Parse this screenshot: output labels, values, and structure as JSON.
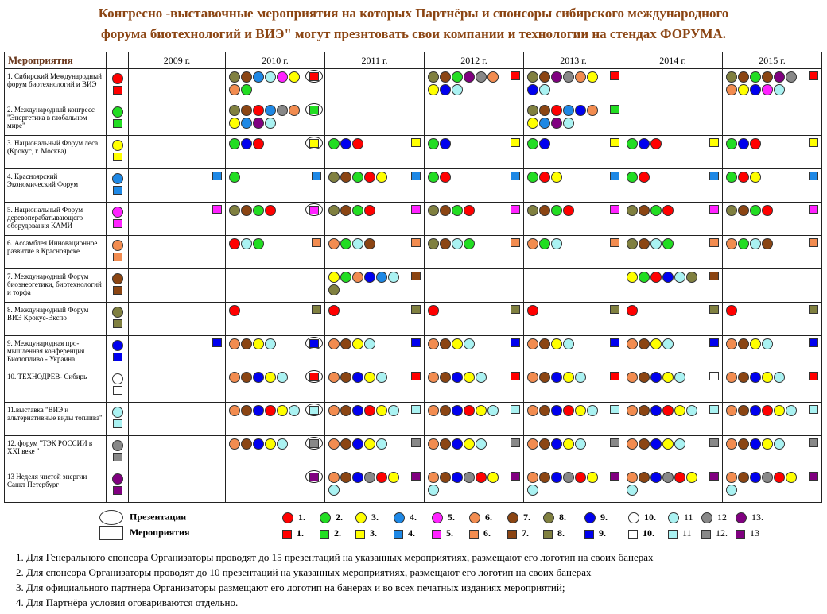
{
  "title_line1": "Конгресно -выставочные мероприятия на которых Партнёры и спонсоры сибирского международного",
  "title_line2": "форума биотехнологий и ВИЭ\" могут презнтовать свои компании и технологии на стендах  ФОРУМА.",
  "header": {
    "events_label": "Мероприятия",
    "years": [
      "2009 г.",
      "2010 г.",
      "2011 г.",
      "2012 г.",
      "2013 г.",
      "2014 г.",
      "2015 г."
    ]
  },
  "colors": {
    "1": "#ff0000",
    "2": "#22dd22",
    "3": "#ffff00",
    "4": "#1e88e5",
    "5": "#ff22ff",
    "6": "#f28c50",
    "7": "#8b4513",
    "8": "#808040",
    "9": "#0000ee",
    "10": "#ffffff",
    "11": "#aaf2f2",
    "12": "#888888",
    "13": "#800080"
  },
  "events": [
    {
      "name": "1. Сибирский Международный форум биотехнологий и ВИЭ",
      "key": "1",
      "cells": [
        null,
        {
          "dots": [
            "8",
            "7",
            "4",
            "11",
            "5",
            "3",
            "6",
            "2"
          ],
          "sq": "1",
          "ring": true
        },
        null,
        {
          "dots": [
            "8",
            "7",
            "2",
            "13",
            "12",
            "6",
            "3",
            "9",
            "11"
          ],
          "sq": "1"
        },
        {
          "dots": [
            "8",
            "7",
            "13",
            "12",
            "6",
            "3",
            "9",
            "11"
          ],
          "sq": "1"
        },
        null,
        {
          "dots": [
            "8",
            "7",
            "2",
            "7",
            "13",
            "12",
            "6",
            "3",
            "9",
            "5",
            "11"
          ],
          "sq": "1"
        }
      ]
    },
    {
      "name": "2. Международный конгресс \"Энергетика в глобальном мире\"",
      "key": "2",
      "cells": [
        null,
        {
          "dots": [
            "8",
            "7",
            "1",
            "4",
            "12",
            "6",
            "3",
            "4",
            "13",
            "11"
          ],
          "sq": "2",
          "ring": true
        },
        null,
        null,
        {
          "dots": [
            "8",
            "7",
            "1",
            "4",
            "9",
            "6",
            "3",
            "4",
            "13",
            "11"
          ],
          "sq": "2"
        },
        null,
        null
      ]
    },
    {
      "name": "3. Национальный Форум леса (Крокус, г. Москва)",
      "key": "3",
      "cells": [
        null,
        {
          "dots": [
            "2",
            "9",
            "1"
          ],
          "sq": "3",
          "ring": true
        },
        {
          "dots": [
            "2",
            "9",
            "1"
          ],
          "sq": "3"
        },
        {
          "dots": [
            "2",
            "9"
          ],
          "sq": "3"
        },
        {
          "dots": [
            "2",
            "9"
          ],
          "sq": "3"
        },
        {
          "dots": [
            "2",
            "9",
            "1"
          ],
          "sq": "3"
        },
        {
          "dots": [
            "2",
            "9",
            "1"
          ],
          "sq": "3"
        }
      ]
    },
    {
      "name": "4. Красноярский Экономический Форум",
      "key": "4",
      "cells": [
        {
          "dots": [],
          "sq": "4"
        },
        {
          "dots": [
            "2"
          ],
          "sq": "4"
        },
        {
          "dots": [
            "8",
            "7",
            "2",
            "1",
            "3"
          ],
          "sq": "4"
        },
        {
          "dots": [
            "2",
            "1"
          ],
          "sq": "4"
        },
        {
          "dots": [
            "2",
            "1",
            "3"
          ],
          "sq": "4"
        },
        {
          "dots": [
            "2",
            "1"
          ],
          "sq": "4"
        },
        {
          "dots": [
            "2",
            "1",
            "3"
          ],
          "sq": "4"
        }
      ]
    },
    {
      "name": "5. Национальный Форум деревоперабатывающего оборудования КАМИ",
      "key": "5",
      "cells": [
        {
          "dots": [],
          "sq": "5"
        },
        {
          "dots": [
            "8",
            "7",
            "2",
            "1"
          ],
          "sq": "5",
          "ring": true
        },
        {
          "dots": [
            "8",
            "7",
            "2",
            "1"
          ],
          "sq": "5"
        },
        {
          "dots": [
            "8",
            "7",
            "2",
            "1"
          ],
          "sq": "5"
        },
        {
          "dots": [
            "8",
            "7",
            "2",
            "1"
          ],
          "sq": "5"
        },
        {
          "dots": [
            "8",
            "7",
            "2",
            "1"
          ],
          "sq": "5"
        },
        {
          "dots": [
            "8",
            "7",
            "2",
            "1"
          ],
          "sq": "5"
        }
      ]
    },
    {
      "name": "6. Ассамблея Инновационное развитие в Красноярске",
      "key": "6",
      "cells": [
        null,
        {
          "dots": [
            "1",
            "11",
            "2"
          ],
          "sq": "6"
        },
        {
          "dots": [
            "6",
            "2",
            "11",
            "7"
          ],
          "sq": "6"
        },
        {
          "dots": [
            "8",
            "7",
            "11",
            "2"
          ],
          "sq": "6"
        },
        {
          "dots": [
            "6",
            "2",
            "11"
          ],
          "sq": "6"
        },
        {
          "dots": [
            "8",
            "7",
            "11",
            "2"
          ],
          "sq": "6"
        },
        {
          "dots": [
            "6",
            "2",
            "11",
            "7"
          ],
          "sq": "6"
        }
      ]
    },
    {
      "name": "7. Международный Форум биоэнергетики, биотехнологий и торфа",
      "key": "7",
      "cells": [
        null,
        null,
        {
          "dots": [
            "3",
            "2",
            "6",
            "9",
            "4",
            "11",
            "8"
          ],
          "sq": "7"
        },
        null,
        null,
        {
          "dots": [
            "3",
            "2",
            "1",
            "9",
            "11",
            "8"
          ],
          "sq": "7"
        },
        null
      ]
    },
    {
      "name": "8. Международный Форум ВИЭ Крокус-Экспо",
      "key": "8",
      "cells": [
        null,
        {
          "dots": [
            "1"
          ],
          "sq": "8"
        },
        {
          "dots": [
            "1"
          ],
          "sq": "8"
        },
        {
          "dots": [
            "1"
          ],
          "sq": "8"
        },
        {
          "dots": [
            "1"
          ],
          "sq": "8"
        },
        {
          "dots": [
            "1"
          ],
          "sq": "8"
        },
        {
          "dots": [
            "1"
          ],
          "sq": "8"
        }
      ]
    },
    {
      "name": "9. Международная про-мышленная конференция Биотопливо - Украина",
      "key": "9",
      "cells": [
        {
          "dots": [],
          "sq": "9"
        },
        {
          "dots": [
            "6",
            "7",
            "3",
            "11"
          ],
          "sq": "9",
          "ring": true
        },
        {
          "dots": [
            "6",
            "7",
            "3",
            "11"
          ],
          "sq": "9"
        },
        {
          "dots": [
            "6",
            "7",
            "3",
            "11"
          ],
          "sq": "9"
        },
        {
          "dots": [
            "6",
            "7",
            "3",
            "11"
          ],
          "sq": "9"
        },
        {
          "dots": [
            "6",
            "7",
            "3",
            "11"
          ],
          "sq": "9"
        },
        {
          "dots": [
            "6",
            "7",
            "3",
            "11"
          ],
          "sq": "9"
        }
      ]
    },
    {
      "name": "10. ТЕХНОДРЕВ- Сибирь",
      "key": "10",
      "cells": [
        null,
        {
          "dots": [
            "6",
            "7",
            "9",
            "3",
            "11"
          ],
          "sq": "1",
          "ring": true
        },
        {
          "dots": [
            "6",
            "7",
            "9",
            "3",
            "11"
          ],
          "sq": "1"
        },
        {
          "dots": [
            "6",
            "7",
            "9",
            "3",
            "11"
          ],
          "sq": "1"
        },
        {
          "dots": [
            "6",
            "7",
            "9",
            "3",
            "11"
          ],
          "sq": "1"
        },
        {
          "dots": [
            "6",
            "7",
            "9",
            "3",
            "11"
          ],
          "sq": "10"
        },
        {
          "dots": [
            "6",
            "7",
            "9",
            "3",
            "11"
          ],
          "sq": "1"
        }
      ]
    },
    {
      "name": "11.выставка \"ВИЭ и альтернативные виды топлива\"",
      "key": "11",
      "cells": [
        null,
        {
          "dots": [
            "6",
            "7",
            "9",
            "1",
            "3",
            "11"
          ],
          "sq": "11",
          "ring": true
        },
        {
          "dots": [
            "6",
            "7",
            "9",
            "1",
            "3",
            "11"
          ],
          "sq": "11"
        },
        {
          "dots": [
            "6",
            "7",
            "9",
            "1",
            "3",
            "11"
          ],
          "sq": "11"
        },
        {
          "dots": [
            "6",
            "7",
            "9",
            "1",
            "3",
            "11"
          ],
          "sq": "11"
        },
        {
          "dots": [
            "6",
            "7",
            "9",
            "1",
            "3",
            "11"
          ],
          "sq": "11"
        },
        {
          "dots": [
            "6",
            "7",
            "9",
            "1",
            "3",
            "11"
          ],
          "sq": "11"
        }
      ]
    },
    {
      "name": "12. форум \"ТЭК РОССИИ в XXI веке \"",
      "key": "12",
      "cells": [
        null,
        {
          "dots": [
            "6",
            "7",
            "9",
            "3",
            "11"
          ],
          "sq": "12",
          "ring": true
        },
        {
          "dots": [
            "6",
            "7",
            "9",
            "3",
            "11"
          ],
          "sq": "12"
        },
        {
          "dots": [
            "6",
            "7",
            "9",
            "3",
            "11"
          ],
          "sq": "12"
        },
        {
          "dots": [
            "6",
            "7",
            "9",
            "3",
            "11"
          ],
          "sq": "12"
        },
        {
          "dots": [
            "6",
            "7",
            "9",
            "3",
            "11"
          ],
          "sq": "12"
        },
        {
          "dots": [
            "6",
            "7",
            "9",
            "3",
            "11"
          ],
          "sq": "12"
        }
      ]
    },
    {
      "name": "13 Неделя чистой энергии Санкт Петербург",
      "key": "13",
      "cells": [
        null,
        {
          "dots": [],
          "sq": "13",
          "ring": true
        },
        {
          "dots": [
            "6",
            "7",
            "9",
            "12",
            "1",
            "3",
            "11"
          ],
          "sq": "13"
        },
        {
          "dots": [
            "6",
            "7",
            "9",
            "12",
            "1",
            "3",
            "11"
          ],
          "sq": "13"
        },
        {
          "dots": [
            "6",
            "7",
            "9",
            "12",
            "1",
            "3",
            "11"
          ],
          "sq": "13"
        },
        {
          "dots": [
            "6",
            "7",
            "9",
            "12",
            "1",
            "3",
            "11"
          ],
          "sq": "13"
        },
        {
          "dots": [
            "6",
            "7",
            "9",
            "12",
            "1",
            "3",
            "11"
          ],
          "sq": "13"
        }
      ]
    }
  ],
  "legend": {
    "presentations": "Презентации",
    "events": "Мероприятия",
    "numbers": [
      "1.",
      "2.",
      "3.",
      "4.",
      "5.",
      "6.",
      "7.",
      "8.",
      "9.",
      "10.",
      "11",
      "12",
      "13."
    ],
    "numbers_sq": [
      "1.",
      "2.",
      "3.",
      "4.",
      "5.",
      "6.",
      "7.",
      "8.",
      "9.",
      "10.",
      "11",
      "12.",
      "13"
    ]
  },
  "notes": [
    "1. Для Генерального спонсора  Организаторы проводят  до 15 презентаций на указанных мероприятиях, размещают его логотип на   своих   банерах",
    "2. Для спонсора Организаторы проводят  до 10 презентаций на указанных мероприятиях, размещают его логотип на   своих   банерах",
    "3. Для официального партнёра Организаторы размещают его логотип на банерах и во всех печатных изданиях мероприятий;",
    "4. Для Партнёра условия оговариваются   отдельно."
  ]
}
